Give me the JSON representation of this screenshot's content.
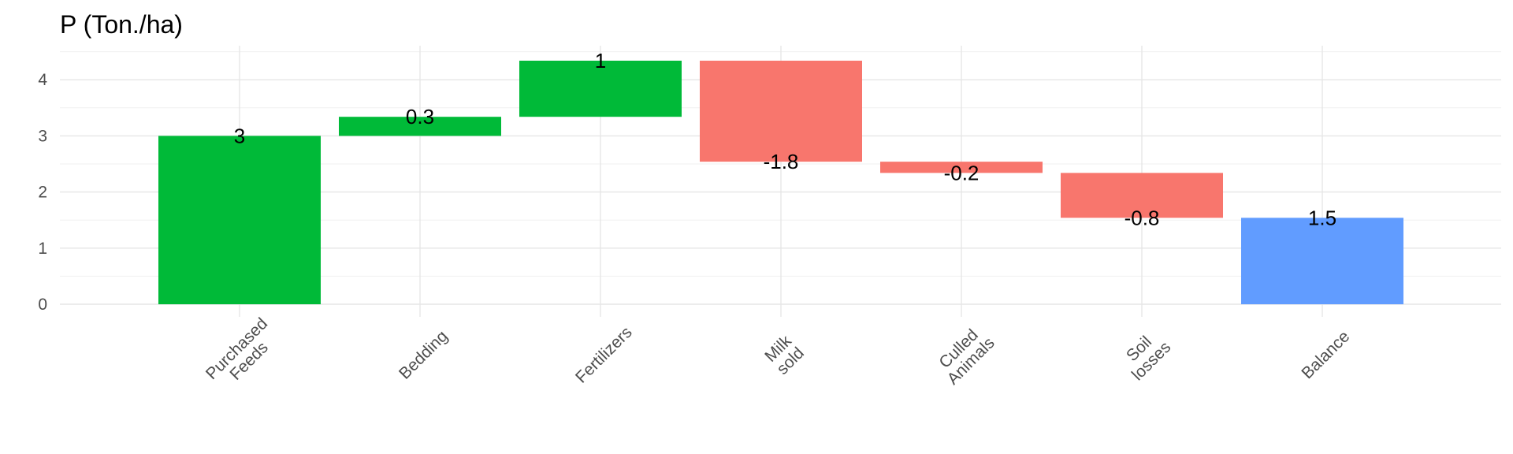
{
  "chart_data": {
    "type": "bar",
    "subtype": "waterfall",
    "title": "P (Ton./ha)",
    "xlabel": "",
    "ylabel": "",
    "ylim": [
      -0.2,
      4.5
    ],
    "y_ticks": [
      0,
      1,
      2,
      3,
      4
    ],
    "grid": true,
    "legend": "none",
    "categories": [
      [
        "Purchased",
        "Feeds"
      ],
      [
        "Bedding"
      ],
      [
        "Fertilizers"
      ],
      [
        "Milk",
        "sold"
      ],
      [
        "Culled",
        "Animals"
      ],
      [
        "Soil",
        "losses"
      ],
      [
        "Balance"
      ]
    ],
    "bars": [
      {
        "start": 0,
        "end": 3.0,
        "label": "3",
        "kind": "increase"
      },
      {
        "start": 3.0,
        "end": 3.34,
        "label": "0.3",
        "kind": "increase"
      },
      {
        "start": 3.34,
        "end": 4.34,
        "label": "1",
        "kind": "increase"
      },
      {
        "start": 4.34,
        "end": 2.54,
        "label": "-1.8",
        "kind": "decrease"
      },
      {
        "start": 2.54,
        "end": 2.34,
        "label": "-0.2",
        "kind": "decrease"
      },
      {
        "start": 2.34,
        "end": 1.54,
        "label": "-0.8",
        "kind": "decrease"
      },
      {
        "start": 0,
        "end": 1.54,
        "label": "1.5",
        "kind": "total"
      }
    ],
    "colors": {
      "increase": "#00ba38",
      "decrease": "#f8766d",
      "total": "#619cff"
    }
  }
}
